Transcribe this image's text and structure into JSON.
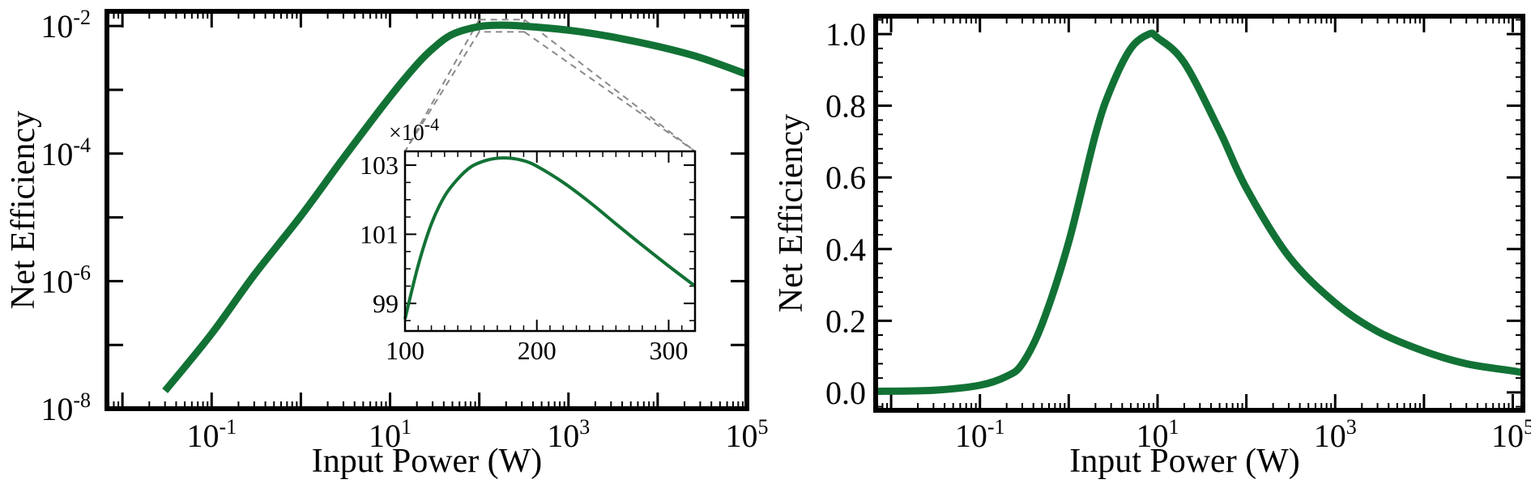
{
  "chart_data": [
    {
      "type": "line",
      "panel": "left",
      "title": "",
      "xlabel": "Input Power (W)",
      "ylabel": "Net Efficiency",
      "xscale": "log",
      "yscale": "log",
      "xlim": [
        0.0067,
        100000
      ],
      "ylim": [
        1e-08,
        0.017
      ],
      "grid": false,
      "line_color": "#127235",
      "xticks": [
        {
          "value": 0.1,
          "base": "10",
          "exp": "-1"
        },
        {
          "value": 10,
          "base": "10",
          "exp": "1"
        },
        {
          "value": 1000,
          "base": "10",
          "exp": "3"
        },
        {
          "value": 100000,
          "base": "10",
          "exp": "5"
        }
      ],
      "yticks": [
        {
          "value": 1e-08,
          "base": "10",
          "exp": "-8"
        },
        {
          "value": 1e-06,
          "base": "10",
          "exp": "-6"
        },
        {
          "value": 0.0001,
          "base": "10",
          "exp": "-4"
        },
        {
          "value": 0.01,
          "base": "10",
          "exp": "-2"
        }
      ],
      "series": [
        {
          "x": [
            0.03,
            0.1,
            0.3,
            1,
            3,
            10,
            20,
            30,
            50,
            100,
            180,
            300,
            1000,
            3000,
            10000,
            30000,
            100000
          ],
          "y": [
            1.9e-08,
            1.5e-07,
            1.25e-06,
            1.05e-05,
            8.5e-05,
            0.00078,
            0.0025,
            0.0044,
            0.0074,
            0.0098,
            0.0103,
            0.01,
            0.0086,
            0.0068,
            0.0048,
            0.0032,
            0.00175
          ]
        }
      ],
      "zoom_box": {
        "xlim": [
          100,
          320
        ],
        "ylim": [
          0.0081,
          0.0126
        ]
      },
      "inset": {
        "xlim": [
          100,
          320
        ],
        "ylim": [
          98.2,
          103.4
        ],
        "exponent_label": "×10",
        "exponent_power": "-4",
        "xticks": [
          {
            "value": 100,
            "label": "100"
          },
          {
            "value": 200,
            "label": "200"
          },
          {
            "value": 300,
            "label": "300"
          }
        ],
        "yticks": [
          {
            "value": 99,
            "label": "99"
          },
          {
            "value": 101,
            "label": "101"
          },
          {
            "value": 103,
            "label": "103"
          }
        ],
        "series": [
          {
            "x": [
              100,
              110,
              120,
              130,
              140,
              150,
              160,
              170,
              180,
              190,
              200,
              220,
              240,
              260,
              280,
              300,
              320
            ],
            "y": [
              98.55,
              100.1,
              101.3,
              102.1,
              102.6,
              102.95,
              103.12,
              103.2,
              103.2,
              103.13,
              102.97,
              102.5,
              101.93,
              101.3,
              100.68,
              100.08,
              99.5
            ]
          }
        ]
      }
    },
    {
      "type": "line",
      "panel": "right",
      "title": "",
      "xlabel": "Input Power (W)",
      "ylabel": "Net Efficiency",
      "xscale": "log",
      "yscale": "linear",
      "xlim": [
        0.0067,
        130000
      ],
      "ylim": [
        -0.05,
        1.05
      ],
      "grid": false,
      "line_color": "#127235",
      "xticks": [
        {
          "value": 0.1,
          "base": "10",
          "exp": "-1"
        },
        {
          "value": 10,
          "base": "10",
          "exp": "1"
        },
        {
          "value": 1000,
          "base": "10",
          "exp": "3"
        },
        {
          "value": 100000,
          "base": "10",
          "exp": "5"
        }
      ],
      "yticks": [
        {
          "value": 0,
          "label": "0.0"
        },
        {
          "value": 0.2,
          "label": "0.2"
        },
        {
          "value": 0.4,
          "label": "0.4"
        },
        {
          "value": 0.6,
          "label": "0.6"
        },
        {
          "value": 0.8,
          "label": "0.8"
        },
        {
          "value": 1.0,
          "label": "1.0"
        }
      ],
      "series": [
        {
          "x": [
            0.0067,
            0.03,
            0.1,
            0.2,
            0.3,
            0.5,
            1,
            2,
            3,
            5,
            8,
            10,
            20,
            50,
            100,
            300,
            1000,
            3000,
            10000,
            30000,
            100000,
            130000
          ],
          "y": [
            0.003,
            0.006,
            0.02,
            0.045,
            0.08,
            0.19,
            0.42,
            0.72,
            0.85,
            0.96,
            1.0,
            0.99,
            0.92,
            0.73,
            0.57,
            0.38,
            0.25,
            0.17,
            0.115,
            0.08,
            0.06,
            0.055
          ]
        }
      ]
    }
  ]
}
